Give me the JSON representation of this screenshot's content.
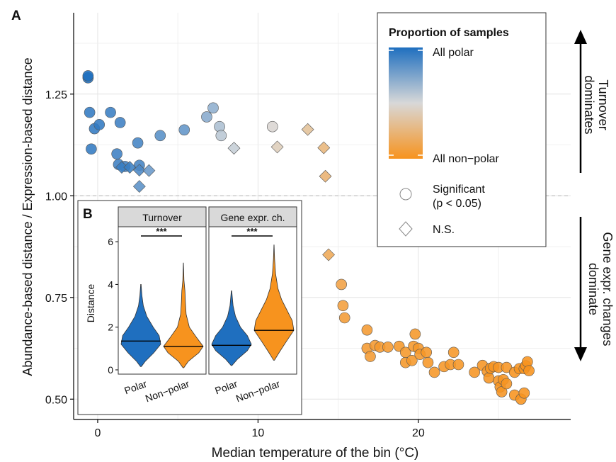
{
  "chart_data": [
    {
      "panel": "A",
      "type": "scatter",
      "xlabel": "Median temperature of the bin (°C)",
      "ylabel": "Abundance-based distance / Expression-based distance",
      "xlim": [
        -1.5,
        29.5
      ],
      "ylim": [
        0.45,
        1.45
      ],
      "x_ticks": [
        0,
        10,
        20
      ],
      "y_ticks": [
        0.5,
        0.75,
        1.0,
        1.25
      ],
      "y_tick_labels": [
        "0.50",
        "0.75",
        "1.00",
        "1.25"
      ],
      "grid": true,
      "reference_line": {
        "y": 1.0,
        "style": "dashed"
      },
      "color_scale": {
        "title": "Proportion of samples",
        "high_label": "All polar",
        "low_label": "All non−polar",
        "high_color": "#1f6fbf",
        "low_color": "#f7931e"
      },
      "shape_legend": [
        {
          "shape": "circle",
          "label_line1": "Significant",
          "label_line2": "(p < 0.05)"
        },
        {
          "shape": "diamond",
          "label_line1": "N.S.",
          "label_line2": ""
        }
      ],
      "legend_placement": "top-right",
      "annotations": {
        "top": [
          "Turnover",
          "dominates"
        ],
        "bottom": [
          "Gene expr. changes",
          "dominate"
        ]
      },
      "points": [
        {
          "x": -0.6,
          "y": 1.29,
          "shape": "circle",
          "polar": 1.0
        },
        {
          "x": -0.6,
          "y": 1.295,
          "shape": "circle",
          "polar": 1.0
        },
        {
          "x": -0.5,
          "y": 1.205,
          "shape": "circle",
          "polar": 0.95
        },
        {
          "x": -0.4,
          "y": 1.115,
          "shape": "circle",
          "polar": 0.95
        },
        {
          "x": -0.2,
          "y": 1.165,
          "shape": "circle",
          "polar": 0.95
        },
        {
          "x": 0.1,
          "y": 1.175,
          "shape": "circle",
          "polar": 0.95
        },
        {
          "x": 0.8,
          "y": 1.205,
          "shape": "circle",
          "polar": 0.93
        },
        {
          "x": 1.4,
          "y": 1.18,
          "shape": "circle",
          "polar": 0.92
        },
        {
          "x": 1.2,
          "y": 1.103,
          "shape": "circle",
          "polar": 0.92
        },
        {
          "x": 1.3,
          "y": 1.077,
          "shape": "circle",
          "polar": 0.92
        },
        {
          "x": 1.7,
          "y": 1.072,
          "shape": "circle",
          "polar": 0.92
        },
        {
          "x": 2.5,
          "y": 1.13,
          "shape": "circle",
          "polar": 0.9
        },
        {
          "x": 2.6,
          "y": 1.075,
          "shape": "circle",
          "polar": 0.9
        },
        {
          "x": 3.9,
          "y": 1.148,
          "shape": "circle",
          "polar": 0.85
        },
        {
          "x": 5.4,
          "y": 1.162,
          "shape": "circle",
          "polar": 0.82
        },
        {
          "x": 6.8,
          "y": 1.194,
          "shape": "circle",
          "polar": 0.72
        },
        {
          "x": 7.2,
          "y": 1.216,
          "shape": "circle",
          "polar": 0.7
        },
        {
          "x": 7.6,
          "y": 1.17,
          "shape": "circle",
          "polar": 0.62
        },
        {
          "x": 7.7,
          "y": 1.148,
          "shape": "circle",
          "polar": 0.58
        },
        {
          "x": 10.9,
          "y": 1.17,
          "shape": "circle",
          "polar": 0.48
        },
        {
          "x": 1.5,
          "y": 1.07,
          "shape": "diamond",
          "polar": 0.93
        },
        {
          "x": 2.0,
          "y": 1.07,
          "shape": "diamond",
          "polar": 0.93
        },
        {
          "x": 2.6,
          "y": 1.063,
          "shape": "diamond",
          "polar": 0.88
        },
        {
          "x": 3.2,
          "y": 1.062,
          "shape": "diamond",
          "polar": 0.8
        },
        {
          "x": 2.6,
          "y": 1.023,
          "shape": "diamond",
          "polar": 0.84
        },
        {
          "x": 8.5,
          "y": 1.117,
          "shape": "diamond",
          "polar": 0.55
        },
        {
          "x": 11.2,
          "y": 1.12,
          "shape": "diamond",
          "polar": 0.42
        },
        {
          "x": 13.1,
          "y": 1.163,
          "shape": "diamond",
          "polar": 0.33
        },
        {
          "x": 14.1,
          "y": 1.118,
          "shape": "diamond",
          "polar": 0.25
        },
        {
          "x": 14.2,
          "y": 1.048,
          "shape": "diamond",
          "polar": 0.22
        },
        {
          "x": 14.4,
          "y": 0.855,
          "shape": "diamond",
          "polar": 0.15
        },
        {
          "x": 15.2,
          "y": 0.782,
          "shape": "circle",
          "polar": 0.1
        },
        {
          "x": 15.3,
          "y": 0.73,
          "shape": "circle",
          "polar": 0.08
        },
        {
          "x": 15.4,
          "y": 0.7,
          "shape": "circle",
          "polar": 0.06
        },
        {
          "x": 16.8,
          "y": 0.67,
          "shape": "circle",
          "polar": 0.05
        },
        {
          "x": 16.8,
          "y": 0.625,
          "shape": "circle",
          "polar": 0.05
        },
        {
          "x": 17.0,
          "y": 0.605,
          "shape": "circle",
          "polar": 0.05
        },
        {
          "x": 17.3,
          "y": 0.632,
          "shape": "circle",
          "polar": 0.04
        },
        {
          "x": 17.6,
          "y": 0.628,
          "shape": "circle",
          "polar": 0.04
        },
        {
          "x": 18.1,
          "y": 0.628,
          "shape": "circle",
          "polar": 0.04
        },
        {
          "x": 18.8,
          "y": 0.63,
          "shape": "circle",
          "polar": 0.03
        },
        {
          "x": 19.2,
          "y": 0.59,
          "shape": "circle",
          "polar": 0.03
        },
        {
          "x": 19.2,
          "y": 0.615,
          "shape": "circle",
          "polar": 0.03
        },
        {
          "x": 19.6,
          "y": 0.595,
          "shape": "circle",
          "polar": 0.03
        },
        {
          "x": 19.7,
          "y": 0.63,
          "shape": "circle",
          "polar": 0.03
        },
        {
          "x": 19.8,
          "y": 0.66,
          "shape": "circle",
          "polar": 0.03
        },
        {
          "x": 20.0,
          "y": 0.625,
          "shape": "circle",
          "polar": 0.03
        },
        {
          "x": 20.1,
          "y": 0.61,
          "shape": "circle",
          "polar": 0.03
        },
        {
          "x": 20.5,
          "y": 0.615,
          "shape": "circle",
          "polar": 0.02
        },
        {
          "x": 20.6,
          "y": 0.59,
          "shape": "circle",
          "polar": 0.02
        },
        {
          "x": 21.0,
          "y": 0.566,
          "shape": "circle",
          "polar": 0.02
        },
        {
          "x": 21.6,
          "y": 0.58,
          "shape": "circle",
          "polar": 0.02
        },
        {
          "x": 22.0,
          "y": 0.585,
          "shape": "circle",
          "polar": 0.02
        },
        {
          "x": 22.2,
          "y": 0.615,
          "shape": "circle",
          "polar": 0.02
        },
        {
          "x": 22.5,
          "y": 0.585,
          "shape": "circle",
          "polar": 0.02
        },
        {
          "x": 23.5,
          "y": 0.566,
          "shape": "circle",
          "polar": 0.01
        },
        {
          "x": 24.0,
          "y": 0.583,
          "shape": "circle",
          "polar": 0.01
        },
        {
          "x": 24.3,
          "y": 0.568,
          "shape": "circle",
          "polar": 0.01
        },
        {
          "x": 24.4,
          "y": 0.552,
          "shape": "circle",
          "polar": 0.01
        },
        {
          "x": 24.5,
          "y": 0.576,
          "shape": "circle",
          "polar": 0.01
        },
        {
          "x": 24.7,
          "y": 0.58,
          "shape": "circle",
          "polar": 0.01
        },
        {
          "x": 25.0,
          "y": 0.578,
          "shape": "circle",
          "polar": 0.01
        },
        {
          "x": 25.0,
          "y": 0.545,
          "shape": "circle",
          "polar": 0.01
        },
        {
          "x": 25.1,
          "y": 0.53,
          "shape": "circle",
          "polar": 0.01
        },
        {
          "x": 25.2,
          "y": 0.518,
          "shape": "circle",
          "polar": 0.01
        },
        {
          "x": 25.3,
          "y": 0.548,
          "shape": "circle",
          "polar": 0.01
        },
        {
          "x": 25.5,
          "y": 0.578,
          "shape": "circle",
          "polar": 0.01
        },
        {
          "x": 25.5,
          "y": 0.538,
          "shape": "circle",
          "polar": 0.01
        },
        {
          "x": 26.0,
          "y": 0.566,
          "shape": "circle",
          "polar": 0.0
        },
        {
          "x": 26.3,
          "y": 0.575,
          "shape": "circle",
          "polar": 0.0
        },
        {
          "x": 26.0,
          "y": 0.51,
          "shape": "circle",
          "polar": 0.0
        },
        {
          "x": 26.4,
          "y": 0.5,
          "shape": "circle",
          "polar": 0.0
        },
        {
          "x": 26.6,
          "y": 0.515,
          "shape": "circle",
          "polar": 0.0
        },
        {
          "x": 26.6,
          "y": 0.575,
          "shape": "circle",
          "polar": 0.0
        },
        {
          "x": 26.7,
          "y": 0.582,
          "shape": "circle",
          "polar": 0.0
        },
        {
          "x": 26.8,
          "y": 0.592,
          "shape": "circle",
          "polar": 0.0
        },
        {
          "x": 26.9,
          "y": 0.57,
          "shape": "circle",
          "polar": 0.0
        }
      ]
    },
    {
      "panel": "B",
      "type": "violin",
      "ylabel": "Distance",
      "ylim": [
        -0.2,
        6.7
      ],
      "y_ticks": [
        0,
        2,
        4,
        6
      ],
      "categories": [
        "Polar",
        "Non−polar"
      ],
      "category_colors": [
        "#1f6fbf",
        "#f7931e"
      ],
      "facets": [
        {
          "title": "Turnover",
          "significance": "***",
          "groups": [
            {
              "name": "Polar",
              "median": 1.35,
              "min": 0.15,
              "max": 4.0,
              "profile": [
                [
                  0.15,
                  0.02
                ],
                [
                  0.4,
                  0.22
                ],
                [
                  0.8,
                  0.65
                ],
                [
                  1.2,
                  1.0
                ],
                [
                  1.6,
                  0.92
                ],
                [
                  2.0,
                  0.62
                ],
                [
                  2.5,
                  0.3
                ],
                [
                  3.0,
                  0.12
                ],
                [
                  3.5,
                  0.05
                ],
                [
                  4.0,
                  0.01
                ]
              ]
            },
            {
              "name": "Non−polar",
              "median": 1.1,
              "min": 0.1,
              "max": 5.0,
              "profile": [
                [
                  0.1,
                  0.02
                ],
                [
                  0.4,
                  0.25
                ],
                [
                  0.8,
                  0.78
                ],
                [
                  1.1,
                  1.0
                ],
                [
                  1.5,
                  0.68
                ],
                [
                  2.0,
                  0.3
                ],
                [
                  2.6,
                  0.14
                ],
                [
                  3.2,
                  0.1
                ],
                [
                  3.7,
                  0.08
                ],
                [
                  4.2,
                  0.03
                ],
                [
                  5.0,
                  0.005
                ]
              ]
            }
          ]
        },
        {
          "title": "Gene expr. ch.",
          "significance": "***",
          "groups": [
            {
              "name": "Polar",
              "median": 1.15,
              "min": 0.2,
              "max": 3.7,
              "profile": [
                [
                  0.2,
                  0.02
                ],
                [
                  0.5,
                  0.3
                ],
                [
                  0.9,
                  0.8
                ],
                [
                  1.2,
                  1.0
                ],
                [
                  1.6,
                  0.8
                ],
                [
                  2.0,
                  0.45
                ],
                [
                  2.5,
                  0.2
                ],
                [
                  3.0,
                  0.08
                ],
                [
                  3.7,
                  0.01
                ]
              ]
            },
            {
              "name": "Non−polar",
              "median": 1.85,
              "min": 0.45,
              "max": 5.85,
              "profile": [
                [
                  0.45,
                  0.02
                ],
                [
                  0.8,
                  0.25
                ],
                [
                  1.3,
                  0.6
                ],
                [
                  1.85,
                  1.0
                ],
                [
                  2.3,
                  0.92
                ],
                [
                  2.8,
                  0.65
                ],
                [
                  3.3,
                  0.38
                ],
                [
                  3.8,
                  0.2
                ],
                [
                  4.5,
                  0.08
                ],
                [
                  5.2,
                  0.03
                ],
                [
                  5.85,
                  0.005
                ]
              ]
            }
          ]
        }
      ]
    }
  ],
  "panel_labels": {
    "a": "A",
    "b": "B"
  }
}
